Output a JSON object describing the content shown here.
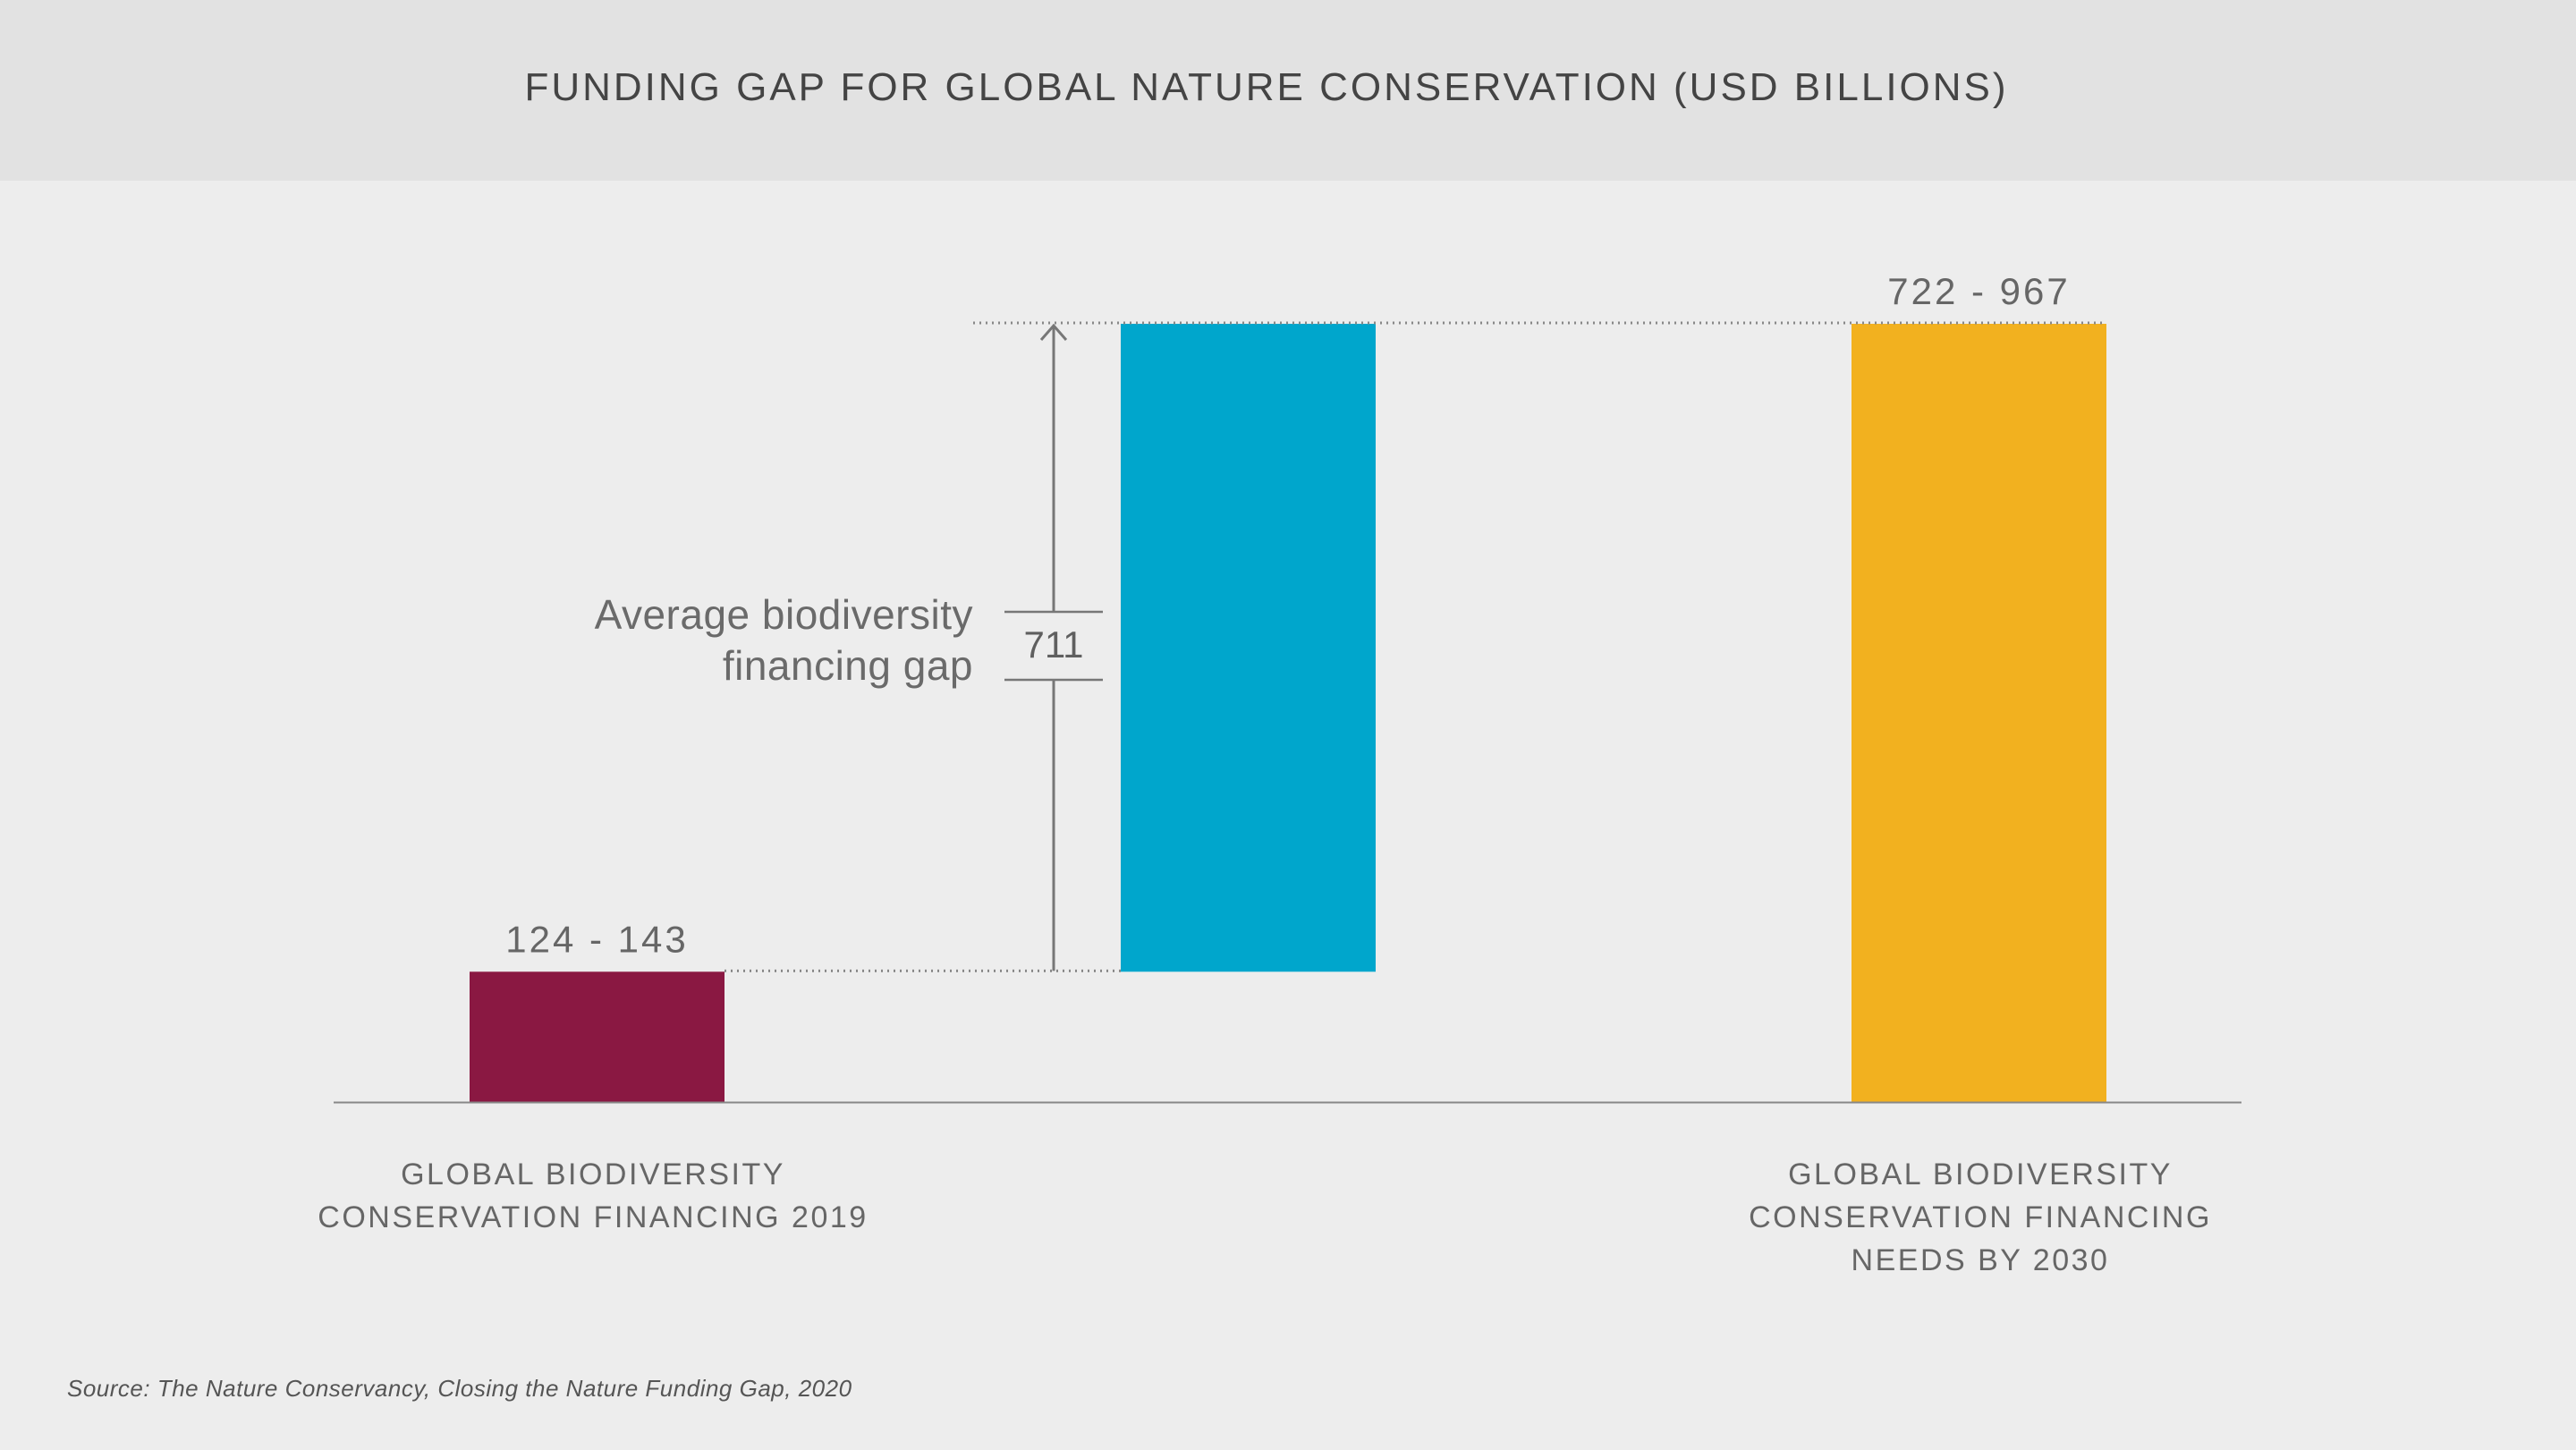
{
  "chart_data": {
    "type": "bar",
    "title": "FUNDING GAP FOR GLOBAL NATURE CONSERVATION (USD BILLIONS)",
    "categories": [
      "GLOBAL BIODIVERSITY\nCONSERVATION FINANCING 2019",
      "",
      "GLOBAL BIODIVERSITY\nCONSERVATION FINANCING\nNEEDS BY 2030"
    ],
    "bars": [
      {
        "label": "124 - 143",
        "base": 0,
        "value": 143,
        "color": "#8a1842"
      },
      {
        "label": "",
        "base": 143,
        "value": 854,
        "color": "#00a6cc"
      },
      {
        "label": "722 - 967",
        "base": 0,
        "value": 854,
        "color": "#f2b11f"
      }
    ],
    "gap": {
      "label": "Average biodiversity\nfinancing gap",
      "value": "711"
    },
    "ylim": [
      0,
      854
    ],
    "grid": false,
    "legend": "none",
    "source": "Source: The Nature Conservancy, Closing the Nature Funding Gap, 2020",
    "colors": {
      "axis": "#888888",
      "text": "#666666",
      "header_bg": "#e2e2e2",
      "page_bg": "#ededed"
    }
  }
}
